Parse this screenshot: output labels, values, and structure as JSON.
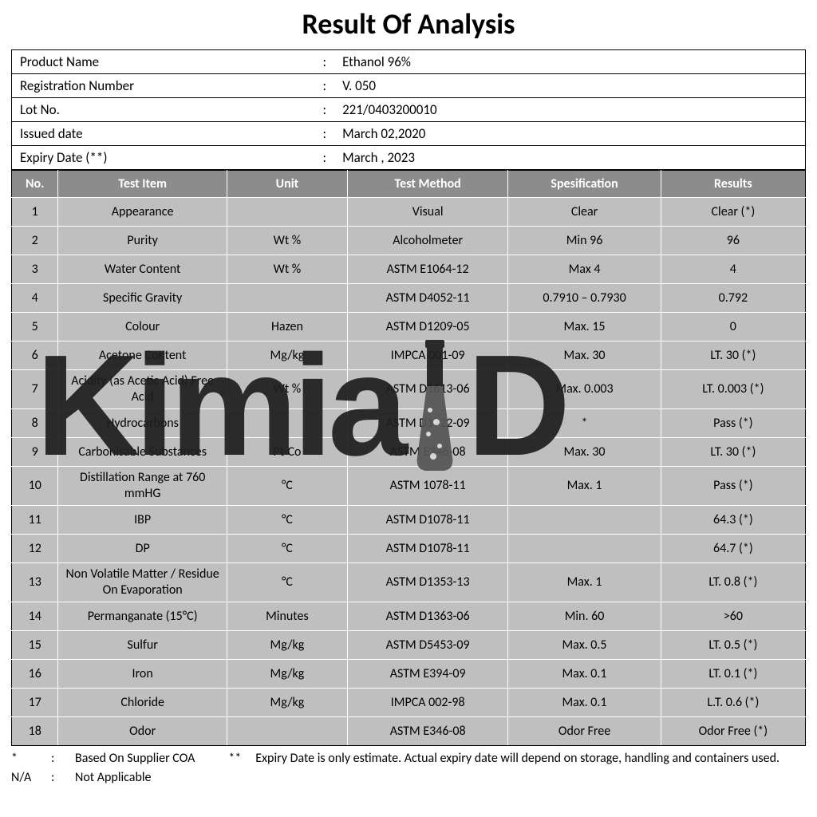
{
  "title": "Result Of Analysis",
  "info": {
    "rows": [
      {
        "label": "Product Name",
        "value": "Ethanol 96%"
      },
      {
        "label": "Registration Number",
        "value": "V. 050"
      },
      {
        "label": "Lot No.",
        "value": "221/0403200010"
      },
      {
        "label": "Issued date",
        "value": "March 02,2020"
      },
      {
        "label": "Expiry Date (**)",
        "value": "March , 2023"
      }
    ]
  },
  "results": {
    "headers": [
      "No.",
      "Test Item",
      "Unit",
      "Test Method",
      "Spesification",
      "Results"
    ],
    "header_bg": "#8c8c8c",
    "header_text_color": "#ffffff",
    "row_bg": "#bfbfbf",
    "rows": [
      {
        "no": "1",
        "item": "Appearance",
        "unit": "",
        "method": "Visual",
        "spec": "Clear",
        "result": "Clear (*)"
      },
      {
        "no": "2",
        "item": "Purity",
        "unit": "Wt %",
        "method": "Alcoholmeter",
        "spec": "Min 96",
        "result": "96"
      },
      {
        "no": "3",
        "item": "Water Content",
        "unit": "Wt %",
        "method": "ASTM E1064-12",
        "spec": "Max 4",
        "result": "4"
      },
      {
        "no": "4",
        "item": "Specific Gravity",
        "unit": "",
        "method": "ASTM D4052-11",
        "spec": "0.7910 – 0.7930",
        "result": "0.792"
      },
      {
        "no": "5",
        "item": "Colour",
        "unit": "Hazen",
        "method": "ASTM D1209-05",
        "spec": "Max. 15",
        "result": "0"
      },
      {
        "no": "6",
        "item": "Acetone Content",
        "unit": "Mg/kg",
        "method": "IMPCA 001-09",
        "spec": "Max. 30",
        "result": "LT. 30 (*)"
      },
      {
        "no": "7",
        "item": "Acidity (as Acetic Acid) Free Acid",
        "unit": "Wt %",
        "method": "ASTM D1613-06",
        "spec": "Max. 0.003",
        "result": "LT. 0.003 (*)"
      },
      {
        "no": "8",
        "item": "Hydrocarbons",
        "unit": "",
        "method": "ASTM D1722-09",
        "spec": "*",
        "result": "Pass (*)"
      },
      {
        "no": "9",
        "item": "Carbonisable Substances",
        "unit": "Pt-Co",
        "method": "ASTM E346-08",
        "spec": "Max. 30",
        "result": "LT. 30 (*)"
      },
      {
        "no": "10",
        "item": "Distillation Range at 760 mmHG",
        "unit": "°C",
        "method": "ASTM 1078-11",
        "spec": "Max. 1",
        "result": "Pass (*)"
      },
      {
        "no": "11",
        "item": "IBP",
        "unit": "°C",
        "method": "ASTM D1078-11",
        "spec": "",
        "result": "64.3 (*)"
      },
      {
        "no": "12",
        "item": "DP",
        "unit": "°C",
        "method": "ASTM D1078-11",
        "spec": "",
        "result": "64.7 (*)"
      },
      {
        "no": "13",
        "item": "Non Volatile Matter / Residue On Evaporation",
        "unit": "°C",
        "method": "ASTM D1353-13",
        "spec": "Max. 1",
        "result": "LT. 0.8 (*)"
      },
      {
        "no": "14",
        "item": "Permanganate (15°C)",
        "unit": "Minutes",
        "method": "ASTM D1363-06",
        "spec": "Min. 60",
        "result": ">60"
      },
      {
        "no": "15",
        "item": "Sulfur",
        "unit": "Mg/kg",
        "method": "ASTM D5453-09",
        "spec": "Max. 0.5",
        "result": "LT. 0.5 (*)"
      },
      {
        "no": "16",
        "item": "Iron",
        "unit": "Mg/kg",
        "method": "ASTM E394-09",
        "spec": "Max. 0.1",
        "result": "LT. 0.1 (*)"
      },
      {
        "no": "17",
        "item": "Chloride",
        "unit": "Mg/kg",
        "method": "IMPCA 002-98",
        "spec": "Max. 0.1",
        "result": "L.T. 0.6 (*)"
      },
      {
        "no": "18",
        "item": "Odor",
        "unit": "",
        "method": "ASTM E346-08",
        "spec": "Odor Free",
        "result": "Odor Free (*)"
      }
    ]
  },
  "footnotes": {
    "star": {
      "symbol": "*",
      "text": "Based On Supplier COA"
    },
    "dstar": {
      "symbol": "**",
      "text": "Expiry Date is only estimate. Actual expiry date will depend on storage, handling and containers used."
    },
    "na": {
      "symbol": "N/A",
      "text": "Not Applicable"
    }
  },
  "watermark": {
    "text_left": "Kimia",
    "text_right": "D",
    "color": "#1f1f1f"
  }
}
